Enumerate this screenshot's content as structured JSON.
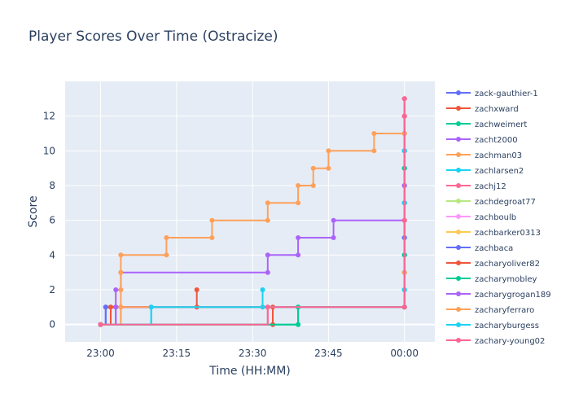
{
  "chart_data": {
    "type": "line",
    "line_shape": "step",
    "title": "Player Scores Over Time (Ostracize)",
    "xlabel": "Time (HH:MM)",
    "ylabel": "Score",
    "x_ticks": [
      "23:00",
      "23:15",
      "23:30",
      "23:45",
      "00:00"
    ],
    "y_ticks": [
      0,
      2,
      4,
      6,
      8,
      10,
      12
    ],
    "xlim": [
      "22:53",
      "00:06"
    ],
    "ylim": [
      -1,
      14
    ],
    "grid": true,
    "legend_position": "right",
    "colors": {
      "plot_bg": "#e5ecf6",
      "grid": "#ffffff",
      "text": "#2a3f5f"
    },
    "series": [
      {
        "name": "zack-gauthier-1",
        "color": "#636efa",
        "points": [
          [
            "23:00",
            0
          ],
          [
            "23:01",
            1
          ],
          [
            "23:03",
            1
          ],
          [
            "00:00",
            1
          ],
          [
            "00:00",
            2
          ],
          [
            "00:00",
            3
          ],
          [
            "00:00",
            4
          ],
          [
            "00:00",
            5
          ],
          [
            "00:00",
            6
          ],
          [
            "00:00",
            7
          ],
          [
            "00:00",
            8
          ],
          [
            "00:00",
            9
          ],
          [
            "00:00",
            10
          ],
          [
            "00:00",
            11
          ],
          [
            "00:00",
            12
          ],
          [
            "00:00",
            13
          ]
        ]
      },
      {
        "name": "zachxward",
        "color": "#ef553b",
        "points": [
          [
            "23:00",
            0
          ],
          [
            "23:02",
            1
          ],
          [
            "23:19",
            1
          ],
          [
            "23:19",
            2
          ]
        ]
      },
      {
        "name": "zachweimert",
        "color": "#00cc96",
        "points": [
          [
            "23:00",
            0
          ],
          [
            "23:39",
            0
          ],
          [
            "23:39",
            1
          ],
          [
            "00:00",
            1
          ],
          [
            "00:00",
            2
          ],
          [
            "00:00",
            3
          ],
          [
            "00:00",
            4
          ],
          [
            "00:00",
            5
          ],
          [
            "00:00",
            6
          ],
          [
            "00:00",
            7
          ],
          [
            "00:00",
            8
          ],
          [
            "00:00",
            9
          ],
          [
            "00:00",
            10
          ],
          [
            "00:00",
            11
          ],
          [
            "00:00",
            12
          ]
        ]
      },
      {
        "name": "zacht2000",
        "color": "#ab63fa",
        "points": [
          [
            "23:00",
            0
          ],
          [
            "23:03",
            1
          ],
          [
            "23:03",
            2
          ],
          [
            "23:04",
            3
          ],
          [
            "23:33",
            3
          ],
          [
            "23:33",
            4
          ],
          [
            "23:39",
            4
          ],
          [
            "23:39",
            5
          ],
          [
            "23:46",
            5
          ],
          [
            "23:46",
            6
          ],
          [
            "00:00",
            6
          ],
          [
            "00:00",
            7
          ],
          [
            "00:00",
            8
          ],
          [
            "00:00",
            9
          ],
          [
            "00:00",
            10
          ],
          [
            "00:00",
            11
          ],
          [
            "00:00",
            12
          ],
          [
            "00:00",
            13
          ]
        ]
      },
      {
        "name": "zachman03",
        "color": "#ffa15a",
        "points": [
          [
            "23:00",
            0
          ],
          [
            "23:04",
            1
          ],
          [
            "23:04",
            2
          ],
          [
            "23:04",
            3
          ],
          [
            "23:04",
            4
          ],
          [
            "23:13",
            4
          ],
          [
            "23:13",
            5
          ],
          [
            "23:22",
            5
          ],
          [
            "23:22",
            6
          ],
          [
            "23:33",
            6
          ],
          [
            "23:33",
            7
          ],
          [
            "23:39",
            7
          ],
          [
            "23:39",
            8
          ],
          [
            "23:42",
            8
          ],
          [
            "23:42",
            9
          ],
          [
            "23:45",
            9
          ],
          [
            "23:45",
            10
          ],
          [
            "23:54",
            10
          ],
          [
            "23:54",
            11
          ],
          [
            "00:00",
            11
          ],
          [
            "00:00",
            12
          ],
          [
            "00:00",
            13
          ]
        ]
      },
      {
        "name": "zachlarsen2",
        "color": "#19d3f3",
        "points": [
          [
            "23:00",
            0
          ],
          [
            "23:10",
            1
          ],
          [
            "23:32",
            1
          ],
          [
            "23:32",
            2
          ]
        ]
      },
      {
        "name": "zachj12",
        "color": "#ff6692",
        "points": [
          [
            "23:00",
            0
          ],
          [
            "23:33",
            1
          ],
          [
            "00:00",
            1
          ],
          [
            "00:00",
            6
          ],
          [
            "00:00",
            12
          ],
          [
            "00:00",
            13
          ]
        ]
      },
      {
        "name": "zachdegroat77",
        "color": "#b6e880",
        "points": [
          [
            "23:00",
            0
          ]
        ]
      },
      {
        "name": "zachboulb",
        "color": "#ff97ff",
        "points": [
          [
            "23:00",
            0
          ]
        ]
      },
      {
        "name": "zachbarker0313",
        "color": "#fecb52",
        "points": [
          [
            "23:00",
            0
          ]
        ]
      },
      {
        "name": "zachbaca",
        "color": "#636efa",
        "points": [
          [
            "23:00",
            0
          ],
          [
            "23:01",
            1
          ],
          [
            "00:00",
            1
          ],
          [
            "00:00",
            5
          ],
          [
            "00:00",
            10
          ]
        ]
      },
      {
        "name": "zacharyoliver82",
        "color": "#ef553b",
        "points": [
          [
            "23:00",
            0
          ],
          [
            "23:02",
            1
          ],
          [
            "23:34",
            1
          ],
          [
            "23:34",
            0
          ]
        ]
      },
      {
        "name": "zacharymobley",
        "color": "#00cc96",
        "points": [
          [
            "23:00",
            0
          ],
          [
            "23:39",
            0
          ],
          [
            "23:39",
            1
          ],
          [
            "00:00",
            1
          ],
          [
            "00:00",
            4
          ],
          [
            "00:00",
            9
          ]
        ]
      },
      {
        "name": "zacharygrogan189",
        "color": "#ab63fa",
        "points": [
          [
            "23:00",
            0
          ],
          [
            "23:03",
            1
          ],
          [
            "00:00",
            1
          ],
          [
            "00:00",
            8
          ]
        ]
      },
      {
        "name": "zacharyferraro",
        "color": "#ffa15a",
        "points": [
          [
            "23:00",
            0
          ],
          [
            "23:04",
            1
          ],
          [
            "00:00",
            1
          ],
          [
            "00:00",
            3
          ],
          [
            "00:00",
            11
          ]
        ]
      },
      {
        "name": "zacharyburgess",
        "color": "#19d3f3",
        "points": [
          [
            "23:00",
            0
          ],
          [
            "23:10",
            1
          ],
          [
            "00:00",
            1
          ],
          [
            "00:00",
            2
          ],
          [
            "00:00",
            7
          ],
          [
            "00:00",
            10
          ]
        ]
      },
      {
        "name": "zachary-young02",
        "color": "#ff6692",
        "points": [
          [
            "23:00",
            0
          ],
          [
            "23:33",
            1
          ],
          [
            "00:00",
            1
          ],
          [
            "00:00",
            6
          ],
          [
            "00:00",
            12
          ]
        ]
      }
    ]
  }
}
